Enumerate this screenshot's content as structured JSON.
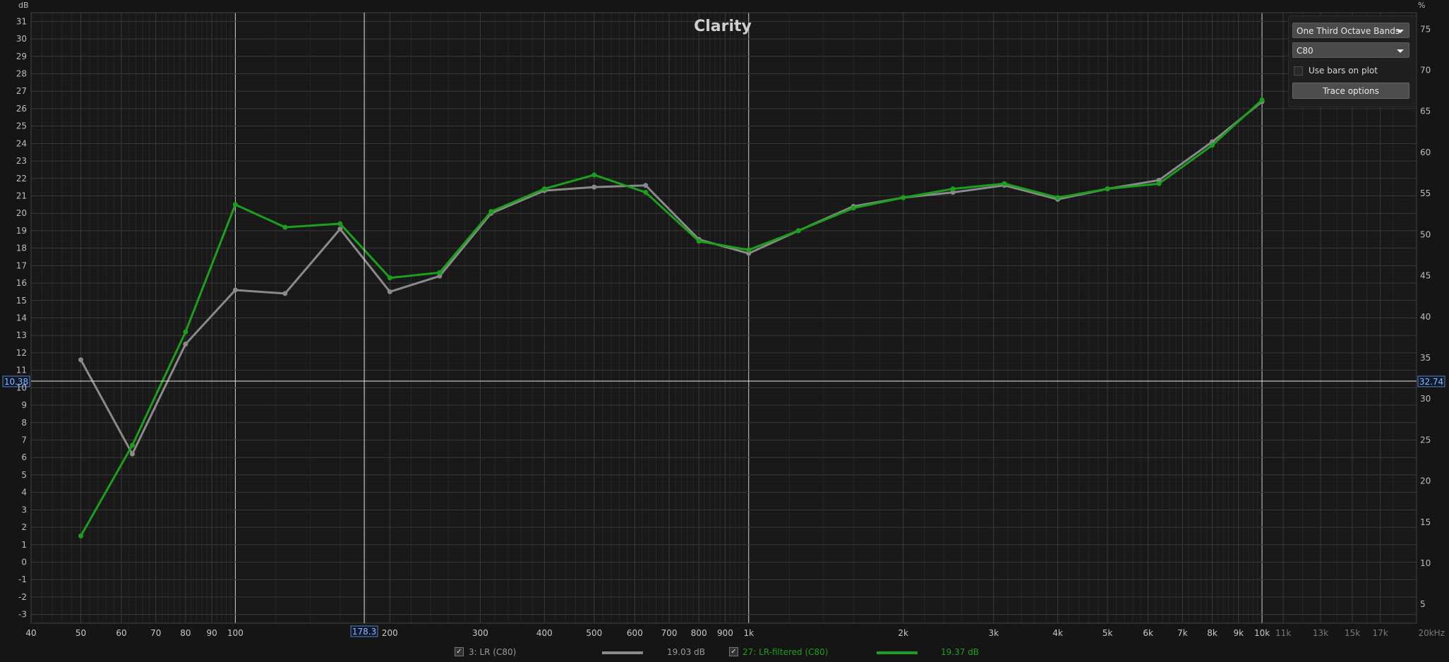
{
  "colors": {
    "background": "#151515",
    "grid_major": "#3a3a3a",
    "grid_minor": "#262626",
    "series_gray": "#8a8a8a",
    "series_green": "#1aa01a",
    "cursor": "#e8e8e8",
    "readout": "#8fb8ff"
  },
  "controls": {
    "band_select": "One Third Octave Bands",
    "metric_select": "C80",
    "use_bars_label": "Use bars on plot",
    "trace_options_label": "Trace options"
  },
  "cursor": {
    "y_readout": "10.38",
    "x_readout": "178.3",
    "right_readout": "32.74"
  },
  "legend": [
    {
      "checked": true,
      "label": "3: LR (C80)",
      "value": "19.03 dB"
    },
    {
      "checked": true,
      "label": "27: LR-filtered (C80)",
      "value": "19.37 dB"
    }
  ],
  "chart_data": {
    "type": "line",
    "title": "Clarity",
    "xscale": "log",
    "xlim": [
      40,
      20000
    ],
    "ylim": [
      -3.5,
      31.5
    ],
    "y_unit": "dB",
    "y2_unit": "%",
    "y2lim": [
      2.7,
      77.0
    ],
    "y_ticks": [
      "31",
      "30",
      "29",
      "28",
      "27",
      "26",
      "25",
      "24",
      "23",
      "22",
      "21",
      "20",
      "19",
      "18",
      "17",
      "16",
      "15",
      "14",
      "13",
      "12",
      "11",
      "10",
      "9",
      "8",
      "7",
      "6",
      "5",
      "4",
      "3",
      "2",
      "1",
      "0",
      "-1",
      "-2",
      "-3"
    ],
    "y2_ticks": [
      "75",
      "70",
      "65",
      "60",
      "55",
      "50",
      "45",
      "40",
      "35",
      "30",
      "25",
      "20",
      "15",
      "10",
      "5"
    ],
    "x_ticks": [
      "40",
      "50",
      "60",
      "70",
      "80",
      "90",
      "100",
      "200",
      "300",
      "400",
      "500",
      "600",
      "700",
      "800",
      "900",
      "1k",
      "2k",
      "3k",
      "4k",
      "5k",
      "6k",
      "7k",
      "8k",
      "9k",
      "10k",
      "11k",
      "13k",
      "15k",
      "17k",
      "20kHz"
    ],
    "cursor_x": 178.3,
    "cursor_y": 10.38,
    "series": [
      {
        "name": "3: LR (C80)",
        "color": "#8a8a8a",
        "x": [
          50,
          63,
          80,
          100,
          125,
          160,
          200,
          250,
          315,
          400,
          500,
          630,
          800,
          1000,
          1250,
          1600,
          2000,
          2500,
          3150,
          4000,
          5000,
          6300,
          8000,
          10000
        ],
        "y": [
          11.6,
          6.2,
          12.5,
          15.6,
          15.4,
          19.1,
          15.5,
          16.4,
          20.0,
          21.3,
          21.5,
          21.6,
          18.5,
          17.7,
          19.0,
          20.4,
          20.9,
          21.2,
          21.6,
          20.8,
          21.4,
          21.9,
          24.1,
          26.4
        ]
      },
      {
        "name": "27: LR-filtered (C80)",
        "color": "#1aa01a",
        "x": [
          50,
          63,
          80,
          100,
          125,
          160,
          200,
          250,
          315,
          400,
          500,
          630,
          800,
          1000,
          1250,
          1600,
          2000,
          2500,
          3150,
          4000,
          5000,
          6300,
          8000,
          10000
        ],
        "y": [
          1.5,
          6.7,
          13.2,
          20.5,
          19.2,
          19.4,
          16.3,
          16.6,
          20.1,
          21.4,
          22.2,
          21.2,
          18.4,
          17.9,
          19.0,
          20.3,
          20.9,
          21.4,
          21.7,
          20.9,
          21.4,
          21.7,
          23.9,
          26.5
        ]
      }
    ]
  }
}
